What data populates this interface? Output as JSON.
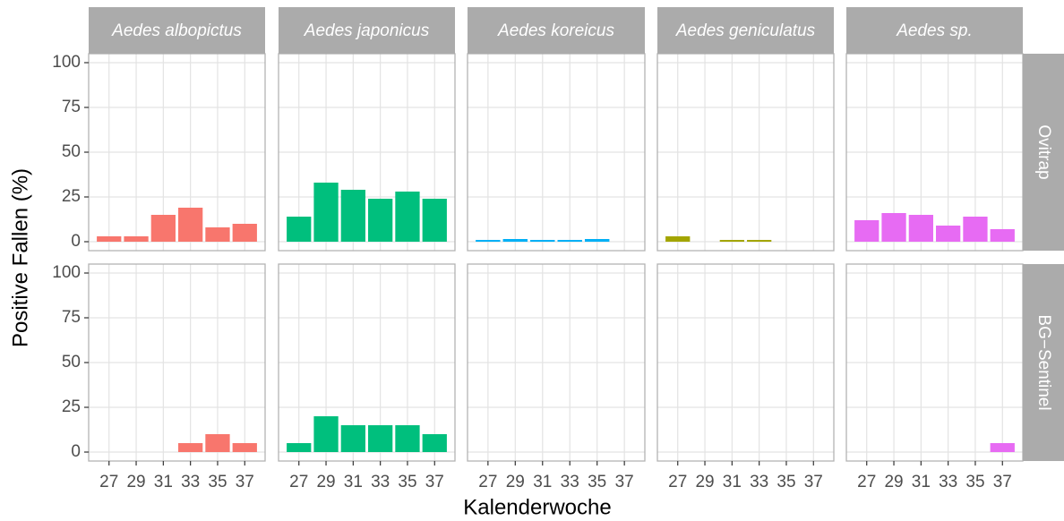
{
  "chart_data": {
    "type": "bar",
    "x_label": "Kalenderwoche",
    "y_label": "Positive Fallen (%)",
    "x": [
      27,
      29,
      31,
      33,
      35,
      37
    ],
    "xlim": [
      25.5,
      38.5
    ],
    "xticks": [
      27,
      29,
      31,
      33,
      35,
      37
    ],
    "ylim": [
      -5,
      105
    ],
    "yticks": [
      0,
      25,
      50,
      75,
      100
    ],
    "grid": true,
    "columns": [
      {
        "name": "Aedes albopictus",
        "color": "#F8766D"
      },
      {
        "name": "Aedes japonicus",
        "color": "#00BF7D"
      },
      {
        "name": "Aedes koreicus",
        "color": "#00B0F6"
      },
      {
        "name": "Aedes geniculatus",
        "color": "#A3A500"
      },
      {
        "name": "Aedes sp.",
        "color": "#E76BF3"
      }
    ],
    "rows": [
      {
        "name": "Ovitrap",
        "panels": [
          [
            3,
            3,
            15,
            19,
            8,
            10
          ],
          [
            14,
            33,
            29,
            24,
            28,
            24
          ],
          [
            1,
            1.5,
            1,
            1,
            1.5,
            null
          ],
          [
            3,
            null,
            1,
            1,
            null,
            null
          ],
          [
            12,
            16,
            15,
            9,
            14,
            7
          ]
        ]
      },
      {
        "name": "BG−Sentinel",
        "panels": [
          [
            null,
            null,
            null,
            5,
            10,
            5
          ],
          [
            5,
            20,
            15,
            15,
            15,
            10
          ],
          [
            null,
            null,
            null,
            null,
            null,
            null
          ],
          [
            null,
            null,
            null,
            null,
            null,
            null
          ],
          [
            null,
            null,
            null,
            null,
            null,
            5
          ]
        ]
      }
    ]
  }
}
